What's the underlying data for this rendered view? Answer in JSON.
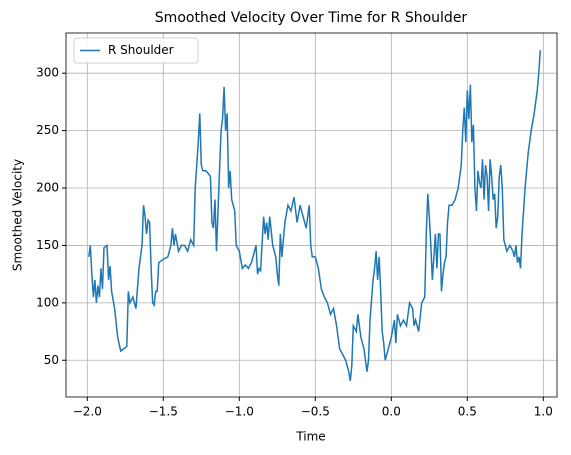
{
  "chart_data": {
    "type": "line",
    "title": "Smoothed Velocity Over Time for R Shoulder",
    "x_label": "Time",
    "y_label": "Smoothed Velocity",
    "legend": "upper left",
    "grid": true,
    "xlim": [
      -2.14,
      1.09
    ],
    "ylim": [
      18,
      335
    ],
    "xticks": [
      {
        "value": -2,
        "label": "−2.0"
      },
      {
        "value": -1.5,
        "label": "−1.5"
      },
      {
        "value": -1,
        "label": "−1.0"
      },
      {
        "value": -0.5,
        "label": "−0.5"
      },
      {
        "value": 0,
        "label": "0.0"
      },
      0.5,
      {
        "value": 1,
        "label": "1.0"
      }
    ],
    "yticks": [
      50,
      100,
      150,
      200,
      250,
      300
    ],
    "x": [
      -1.99,
      -1.98,
      -1.97,
      -1.96,
      -1.95,
      -1.94,
      -1.93,
      -1.92,
      -1.91,
      -1.9,
      -1.89,
      -1.87,
      -1.86,
      -1.85,
      -1.84,
      -1.82,
      -1.8,
      -1.78,
      -1.76,
      -1.74,
      -1.73,
      -1.72,
      -1.7,
      -1.68,
      -1.66,
      -1.64,
      -1.63,
      -1.62,
      -1.61,
      -1.6,
      -1.59,
      -1.58,
      -1.57,
      -1.56,
      -1.55,
      -1.54,
      -1.53,
      -1.5,
      -1.47,
      -1.45,
      -1.44,
      -1.43,
      -1.42,
      -1.4,
      -1.38,
      -1.36,
      -1.34,
      -1.32,
      -1.3,
      -1.29,
      -1.28,
      -1.27,
      -1.26,
      -1.25,
      -1.24,
      -1.22,
      -1.2,
      -1.19,
      -1.18,
      -1.17,
      -1.16,
      -1.15,
      -1.13,
      -1.12,
      -1.11,
      -1.1,
      -1.09,
      -1.08,
      -1.07,
      -1.06,
      -1.05,
      -1.04,
      -1.03,
      -1.02,
      -1.0,
      -0.98,
      -0.96,
      -0.94,
      -0.92,
      -0.9,
      -0.89,
      -0.88,
      -0.87,
      -0.86,
      -0.84,
      -0.83,
      -0.82,
      -0.81,
      -0.8,
      -0.78,
      -0.76,
      -0.75,
      -0.74,
      -0.73,
      -0.72,
      -0.7,
      -0.68,
      -0.66,
      -0.64,
      -0.62,
      -0.6,
      -0.58,
      -0.56,
      -0.54,
      -0.53,
      -0.52,
      -0.5,
      -0.48,
      -0.46,
      -0.44,
      -0.42,
      -0.4,
      -0.38,
      -0.36,
      -0.34,
      -0.32,
      -0.3,
      -0.28,
      -0.27,
      -0.26,
      -0.25,
      -0.23,
      -0.22,
      -0.2,
      -0.18,
      -0.16,
      -0.15,
      -0.14,
      -0.12,
      -0.11,
      -0.1,
      -0.09,
      -0.08,
      -0.07,
      -0.06,
      -0.05,
      -0.04,
      -0.02,
      0.0,
      0.02,
      0.03,
      0.04,
      0.06,
      0.08,
      0.1,
      0.12,
      0.14,
      0.15,
      0.16,
      0.18,
      0.2,
      0.22,
      0.23,
      0.24,
      0.25,
      0.26,
      0.27,
      0.28,
      0.29,
      0.3,
      0.31,
      0.32,
      0.33,
      0.34,
      0.35,
      0.36,
      0.37,
      0.38,
      0.4,
      0.42,
      0.44,
      0.46,
      0.47,
      0.48,
      0.49,
      0.5,
      0.51,
      0.52,
      0.53,
      0.54,
      0.55,
      0.56,
      0.57,
      0.58,
      0.59,
      0.6,
      0.61,
      0.62,
      0.63,
      0.64,
      0.65,
      0.66,
      0.67,
      0.68,
      0.69,
      0.7,
      0.71,
      0.72,
      0.73,
      0.74,
      0.75,
      0.76,
      0.78,
      0.8,
      0.81,
      0.82,
      0.83,
      0.84,
      0.85,
      0.86,
      0.88,
      0.9,
      0.92,
      0.94,
      0.96,
      0.97,
      0.98
    ],
    "series": [
      {
        "name": "R Shoulder",
        "color": "#1f77b4",
        "values": [
          140,
          150,
          125,
          105,
          120,
          100,
          115,
          105,
          130,
          112,
          148,
          150,
          120,
          132,
          110,
          95,
          70,
          58,
          60,
          62,
          110,
          100,
          105,
          95,
          130,
          150,
          185,
          175,
          160,
          172,
          170,
          130,
          100,
          98,
          110,
          110,
          135,
          138,
          140,
          150,
          165,
          150,
          160,
          145,
          150,
          150,
          145,
          155,
          150,
          200,
          220,
          240,
          265,
          220,
          215,
          215,
          212,
          210,
          170,
          165,
          190,
          145,
          215,
          250,
          260,
          288,
          250,
          265,
          200,
          215,
          190,
          185,
          180,
          150,
          145,
          130,
          133,
          130,
          135,
          145,
          150,
          125,
          130,
          128,
          175,
          160,
          170,
          155,
          175,
          150,
          140,
          125,
          115,
          160,
          140,
          170,
          185,
          180,
          192,
          170,
          185,
          175,
          165,
          185,
          150,
          140,
          140,
          130,
          112,
          105,
          100,
          90,
          95,
          80,
          60,
          55,
          50,
          40,
          32,
          45,
          80,
          75,
          90,
          70,
          60,
          40,
          50,
          85,
          120,
          130,
          145,
          120,
          140,
          110,
          75,
          65,
          50,
          60,
          70,
          85,
          65,
          90,
          80,
          85,
          80,
          100,
          95,
          80,
          85,
          75,
          100,
          105,
          160,
          195,
          175,
          150,
          120,
          140,
          160,
          130,
          160,
          160,
          110,
          125,
          135,
          140,
          170,
          185,
          185,
          190,
          200,
          220,
          250,
          270,
          240,
          285,
          260,
          290,
          240,
          255,
          200,
          180,
          215,
          205,
          200,
          225,
          190,
          220,
          210,
          180,
          225,
          210,
          190,
          195,
          165,
          175,
          210,
          220,
          200,
          155,
          150,
          145,
          150,
          145,
          140,
          150,
          135,
          140,
          130,
          160,
          200,
          230,
          250,
          265,
          285,
          300,
          320
        ]
      }
    ]
  }
}
